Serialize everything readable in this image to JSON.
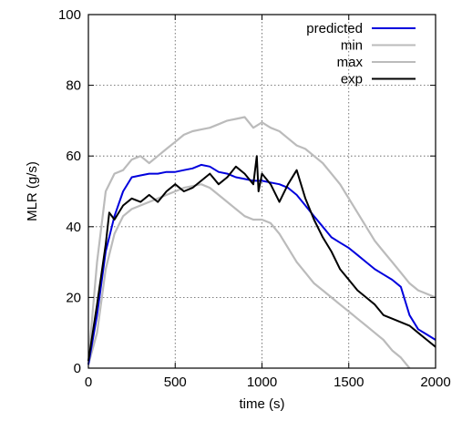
{
  "chart_data": {
    "type": "line",
    "title": "",
    "xlabel": "time (s)",
    "ylabel": "MLR (g/s)",
    "xlim": [
      0,
      2000
    ],
    "ylim": [
      0,
      100
    ],
    "xticks": [
      0,
      500,
      1000,
      1500,
      2000
    ],
    "yticks": [
      0,
      20,
      40,
      60,
      80,
      100
    ],
    "grid": true,
    "legend_position": "top-right",
    "series": [
      {
        "name": "predicted",
        "color": "#0000dd",
        "x": [
          0,
          50,
          100,
          150,
          200,
          250,
          300,
          350,
          400,
          450,
          500,
          550,
          600,
          650,
          700,
          750,
          800,
          850,
          900,
          950,
          1000,
          1050,
          1100,
          1150,
          1200,
          1250,
          1300,
          1350,
          1400,
          1450,
          1500,
          1550,
          1600,
          1650,
          1700,
          1750,
          1800,
          1850,
          1900,
          1950,
          2000
        ],
        "y": [
          1,
          15,
          33,
          43,
          50,
          54,
          54.5,
          55,
          55,
          55.5,
          55.5,
          56,
          56.5,
          57.5,
          57,
          55.5,
          55,
          54,
          53.5,
          53,
          53,
          52.5,
          52,
          51,
          49,
          46,
          43,
          40,
          37,
          35.5,
          34,
          32,
          30,
          28,
          26.5,
          25,
          23,
          15,
          11,
          9.5,
          8
        ]
      },
      {
        "name": "min",
        "color": "#bbbbbb",
        "x": [
          0,
          50,
          100,
          150,
          200,
          250,
          300,
          350,
          400,
          450,
          500,
          550,
          600,
          650,
          700,
          750,
          800,
          850,
          900,
          950,
          1000,
          1050,
          1100,
          1150,
          1200,
          1250,
          1300,
          1350,
          1400,
          1450,
          1500,
          1550,
          1600,
          1650,
          1700,
          1750,
          1800,
          1850
        ],
        "y": [
          1,
          10,
          28,
          38,
          43,
          45,
          46,
          47,
          48,
          49,
          50,
          51,
          51.5,
          52,
          51,
          49,
          47,
          45,
          43,
          42,
          42,
          41,
          38,
          34,
          30,
          27,
          24,
          22,
          20,
          18,
          16,
          14,
          12,
          10,
          8,
          5,
          3,
          0
        ]
      },
      {
        "name": "max",
        "color": "#bbbbbb",
        "x": [
          0,
          50,
          100,
          150,
          200,
          250,
          300,
          350,
          400,
          450,
          500,
          550,
          600,
          650,
          700,
          750,
          800,
          850,
          900,
          950,
          1000,
          1050,
          1100,
          1150,
          1200,
          1250,
          1300,
          1350,
          1400,
          1450,
          1500,
          1550,
          1600,
          1650,
          1700,
          1750,
          1800,
          1850,
          1900,
          1950,
          2000
        ],
        "y": [
          2,
          30,
          50,
          55,
          56,
          59,
          60,
          58,
          60,
          62,
          64,
          66,
          67,
          67.5,
          68,
          69,
          70,
          70.5,
          71,
          68,
          69.5,
          68,
          67,
          65,
          63,
          62,
          60,
          58,
          55,
          52,
          48,
          44,
          40,
          36,
          33,
          30,
          27,
          24,
          22,
          21,
          20
        ]
      },
      {
        "name": "exp",
        "color": "#000000",
        "x": [
          0,
          50,
          100,
          120,
          150,
          200,
          250,
          300,
          350,
          400,
          450,
          500,
          550,
          600,
          650,
          700,
          750,
          800,
          850,
          900,
          950,
          970,
          980,
          1000,
          1050,
          1100,
          1150,
          1200,
          1250,
          1300,
          1350,
          1400,
          1450,
          1500,
          1550,
          1600,
          1650,
          1700,
          1750,
          1800,
          1850,
          1900,
          1950,
          2000
        ],
        "y": [
          2,
          18,
          35,
          44,
          42,
          46,
          48,
          47,
          49,
          47,
          50,
          52,
          50,
          51,
          53,
          55,
          52,
          54,
          57,
          55,
          52,
          60,
          50,
          55,
          52,
          47,
          52,
          56,
          48,
          42,
          37,
          33,
          28,
          25,
          22,
          20,
          18,
          15,
          14,
          13,
          12,
          10,
          8,
          6
        ]
      }
    ]
  }
}
